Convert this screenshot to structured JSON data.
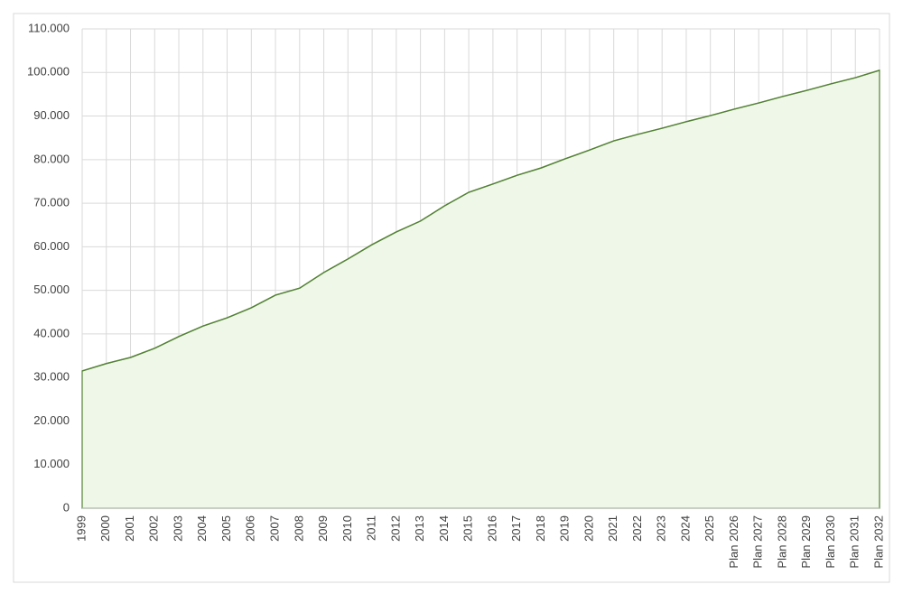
{
  "chart_data": {
    "type": "area",
    "categories": [
      "1999",
      "2000",
      "2001",
      "2002",
      "2003",
      "2004",
      "2005",
      "2006",
      "2007",
      "2008",
      "2009",
      "2010",
      "2011",
      "2012",
      "2013",
      "2014",
      "2015",
      "2016",
      "2017",
      "2018",
      "2019",
      "2020",
      "2021",
      "2022",
      "2023",
      "2024",
      "2025",
      "Plan 2026",
      "Plan 2027",
      "Plan 2028",
      "Plan 2029",
      "Plan 2030",
      "Plan 2031",
      "Plan 2032"
    ],
    "values": [
      31500,
      33200,
      34600,
      36700,
      39400,
      41800,
      43700,
      46000,
      48900,
      50500,
      54100,
      57200,
      60500,
      63400,
      65900,
      69400,
      72500,
      74400,
      76400,
      78100,
      80200,
      82200,
      84300,
      85800,
      87200,
      88700,
      90100,
      91600,
      93000,
      94500,
      95900,
      97400,
      98800,
      100500
    ],
    "color": "#548235",
    "fill": "#eef7e8",
    "ylim": [
      0,
      110000
    ],
    "yticks": [
      0,
      {
        "value": 10000,
        "label": "10.000"
      },
      {
        "value": 20000,
        "label": "20.000"
      },
      {
        "value": 30000,
        "label": "30.000"
      },
      {
        "value": 40000,
        "label": "40.000"
      },
      {
        "value": 50000,
        "label": "50.000"
      },
      {
        "value": 60000,
        "label": "60.000"
      },
      {
        "value": 70000,
        "label": "70.000"
      },
      {
        "value": 80000,
        "label": "80.000"
      },
      {
        "value": 90000,
        "label": "90.000"
      },
      {
        "value": 100000,
        "label": "100.000"
      },
      {
        "value": 110000,
        "label": "110.000"
      }
    ],
    "grid": true
  }
}
